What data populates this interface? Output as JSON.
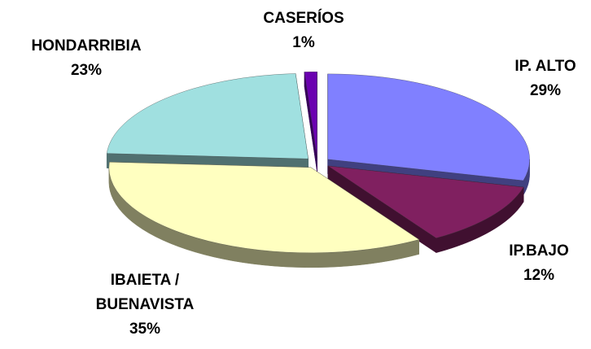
{
  "chart_data": {
    "type": "pie3d",
    "categories": [
      "IP. ALTO",
      "IP.BAJO",
      "IBAIETA / BUENAVISTA",
      "HONDARRIBIA",
      "CASERÍOS"
    ],
    "values": [
      29,
      12,
      35,
      23,
      1
    ],
    "value_labels": [
      "29%",
      "12%",
      "35%",
      "23%",
      "1%"
    ],
    "colors": [
      "#8080ff",
      "#802060",
      "#ffffc0",
      "#a0e0e0",
      "#6a00b0"
    ]
  }
}
